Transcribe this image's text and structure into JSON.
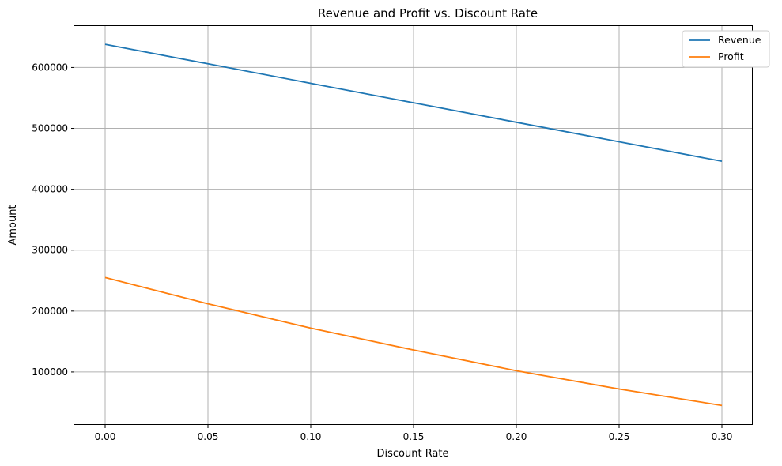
{
  "chart_data": {
    "type": "line",
    "title": "Revenue and Profit vs. Discount Rate",
    "xlabel": "Discount Rate",
    "ylabel": "Amount",
    "x": [
      0.0,
      0.05,
      0.1,
      0.15,
      0.2,
      0.25,
      0.3
    ],
    "xlim": [
      -0.015,
      0.315
    ],
    "ylim": [
      13000,
      668000
    ],
    "xticks": [
      0.0,
      0.05,
      0.1,
      0.15,
      0.2,
      0.25,
      0.3
    ],
    "xtick_labels": [
      "0.00",
      "0.05",
      "0.10",
      "0.15",
      "0.20",
      "0.25",
      "0.30"
    ],
    "yticks": [
      100000,
      200000,
      300000,
      400000,
      500000,
      600000
    ],
    "ytick_labels": [
      "100000",
      "200000",
      "300000",
      "400000",
      "500000",
      "600000"
    ],
    "grid": true,
    "legend_position": "top-right",
    "series": [
      {
        "name": "Revenue",
        "color": "#1f77b4",
        "values": [
          638000,
          606000,
          574000,
          542000,
          510000,
          478000,
          446000
        ]
      },
      {
        "name": "Profit",
        "color": "#ff7f0e",
        "values": [
          255000,
          212000,
          172000,
          136000,
          102000,
          72000,
          45000
        ]
      }
    ]
  }
}
